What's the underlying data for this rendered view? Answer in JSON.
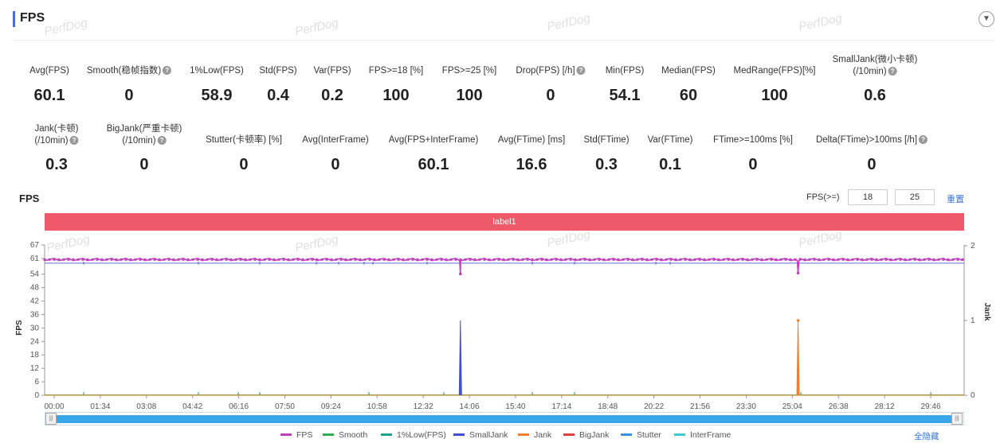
{
  "header": {
    "title": "FPS",
    "collapse_icon": "chevron-down-icon"
  },
  "watermark": "PerfDog",
  "metrics_row1": [
    {
      "label": "Avg(FPS)",
      "value": "60.1",
      "help": false
    },
    {
      "label": "Smooth(稳帧指数)",
      "value": "0",
      "help": true
    },
    {
      "label": "1%Low(FPS)",
      "value": "58.9",
      "help": false
    },
    {
      "label": "Std(FPS)",
      "value": "0.4",
      "help": false
    },
    {
      "label": "Var(FPS)",
      "value": "0.2",
      "help": false
    },
    {
      "label": "FPS>=18 [%]",
      "value": "100",
      "help": false
    },
    {
      "label": "FPS>=25 [%]",
      "value": "100",
      "help": false
    },
    {
      "label": "Drop(FPS) [/h]",
      "value": "0",
      "help": true
    },
    {
      "label": "Min(FPS)",
      "value": "54.1",
      "help": false
    },
    {
      "label": "Median(FPS)",
      "value": "60",
      "help": false
    },
    {
      "label": "MedRange(FPS)[%]",
      "value": "100",
      "help": false
    },
    {
      "label": "SmallJank(微小卡顿)",
      "label2": "(/10min)",
      "value": "0.6",
      "help": true
    }
  ],
  "metrics_row2": [
    {
      "label": "Jank(卡顿)",
      "label2": "(/10min)",
      "value": "0.3",
      "help": true
    },
    {
      "label": "BigJank(严重卡顿)",
      "label2": "(/10min)",
      "value": "0",
      "help": true
    },
    {
      "label": "Stutter(卡顿率) [%]",
      "value": "0",
      "help": false
    },
    {
      "label": "Avg(InterFrame)",
      "value": "0",
      "help": false
    },
    {
      "label": "Avg(FPS+InterFrame)",
      "value": "60.1",
      "help": false
    },
    {
      "label": "Avg(FTime) [ms]",
      "value": "16.6",
      "help": false
    },
    {
      "label": "Std(FTime)",
      "value": "0.3",
      "help": false
    },
    {
      "label": "Var(FTime)",
      "value": "0.1",
      "help": false
    },
    {
      "label": "FTime>=100ms [%]",
      "value": "0",
      "help": false
    },
    {
      "label": "Delta(FTime)>100ms [/h]",
      "value": "0",
      "help": true
    }
  ],
  "chart_section": {
    "title": "FPS",
    "threshold_label": "FPS(>=)",
    "threshold1": "18",
    "threshold2": "25",
    "reset_label": "重置",
    "label_bar": "label1"
  },
  "chart_data": {
    "type": "line",
    "y_axis_left": {
      "label": "FPS",
      "ticks": [
        0,
        6,
        12,
        18,
        24,
        30,
        36,
        42,
        48,
        54,
        61,
        67
      ],
      "range": [
        0,
        67
      ]
    },
    "y_axis_right": {
      "label": "Jank",
      "ticks": [
        0,
        1,
        2
      ],
      "range": [
        0,
        2
      ]
    },
    "x_ticks": [
      "00:00",
      "01:34",
      "03:08",
      "04:42",
      "06:16",
      "07:50",
      "09:24",
      "10:58",
      "12:32",
      "14:06",
      "15:40",
      "17:14",
      "18:48",
      "20:22",
      "21:56",
      "23:30",
      "25:04",
      "26:38",
      "28:12",
      "29:46"
    ],
    "x_range_seconds": [
      0,
      1860
    ],
    "series": [
      {
        "name": "FPS",
        "color": "#c040c0",
        "baseline": 60,
        "dips": [
          {
            "t": 841,
            "v": 54.1
          },
          {
            "t": 1524,
            "v": 54.5
          }
        ]
      },
      {
        "name": "Smooth",
        "color": "#30b050",
        "baseline": 0
      },
      {
        "name": "1%Low(FPS)",
        "color": "#20a090",
        "baseline": 58.9
      },
      {
        "name": "SmallJank",
        "color": "#4050d0",
        "spikes": [
          {
            "t": 841,
            "v": 1
          }
        ]
      },
      {
        "name": "Jank",
        "color": "#f08030",
        "spikes": [
          {
            "t": 1524,
            "v": 1
          }
        ]
      },
      {
        "name": "BigJank",
        "color": "#e04040"
      },
      {
        "name": "Stutter",
        "color": "#4090e0"
      },
      {
        "name": "InterFrame",
        "color": "#40c8d8"
      }
    ]
  },
  "legend_hide_all": "全隐藏"
}
